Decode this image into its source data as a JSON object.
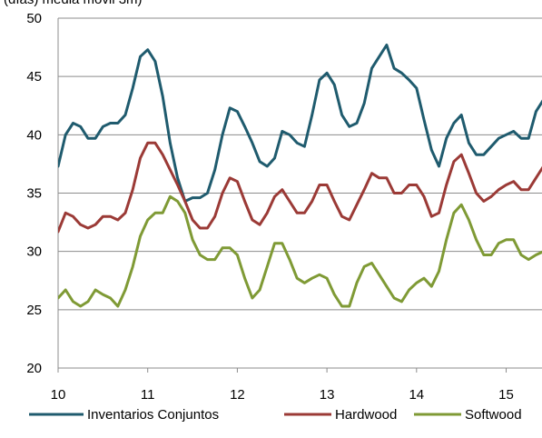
{
  "chart_data": {
    "type": "line",
    "title": "",
    "unit_label": "(días) media móvil 3m)",
    "xlabel": "",
    "ylabel": "",
    "xlim": [
      10,
      15.4
    ],
    "ylim": [
      20,
      50
    ],
    "x_ticks": [
      "10",
      "11",
      "12",
      "13",
      "14",
      "15"
    ],
    "y_ticks": [
      "20",
      "25",
      "30",
      "35",
      "40",
      "45",
      "50"
    ],
    "grid": "horizontal",
    "legend_position": "bottom",
    "x": [
      10.0,
      10.0833,
      10.1667,
      10.25,
      10.3333,
      10.4167,
      10.5,
      10.5833,
      10.6667,
      10.75,
      10.8333,
      10.9167,
      11.0,
      11.0833,
      11.1667,
      11.25,
      11.3333,
      11.4167,
      11.5,
      11.5833,
      11.6667,
      11.75,
      11.8333,
      11.9167,
      12.0,
      12.0833,
      12.1667,
      12.25,
      12.3333,
      12.4167,
      12.5,
      12.5833,
      12.6667,
      12.75,
      12.8333,
      12.9167,
      13.0,
      13.0833,
      13.1667,
      13.25,
      13.3333,
      13.4167,
      13.5,
      13.5833,
      13.6667,
      13.75,
      13.8333,
      13.9167,
      14.0,
      14.0833,
      14.1667,
      14.25,
      14.3333,
      14.4167,
      14.5,
      14.5833,
      14.6667,
      14.75,
      14.8333,
      14.9167,
      15.0,
      15.0833,
      15.1667,
      15.25,
      15.3333,
      15.4167
    ],
    "series": [
      {
        "name": "Inventarios Conjuntos",
        "color": "#1f5b6e",
        "values": [
          37.3,
          40.0,
          41.0,
          40.7,
          39.7,
          39.7,
          40.7,
          41.0,
          41.0,
          41.7,
          44.0,
          46.7,
          47.3,
          46.3,
          43.3,
          39.3,
          36.3,
          34.3,
          34.6,
          34.6,
          35.0,
          37.0,
          40.0,
          42.3,
          42.0,
          40.7,
          39.3,
          37.7,
          37.3,
          38.0,
          40.3,
          40.0,
          39.3,
          39.0,
          41.7,
          44.7,
          45.3,
          44.3,
          41.7,
          40.7,
          41.0,
          42.7,
          45.7,
          46.7,
          47.7,
          45.7,
          45.3,
          44.7,
          44.0,
          41.3,
          38.7,
          37.3,
          39.7,
          41.0,
          41.7,
          39.3,
          38.3,
          38.3,
          39.0,
          39.7,
          40.0,
          40.3,
          39.7,
          39.7,
          42.0,
          43.0
        ]
      },
      {
        "name": "Hardwood",
        "color": "#9b3a36",
        "values": [
          31.7,
          33.3,
          33.0,
          32.3,
          32.0,
          32.3,
          33.0,
          33.0,
          32.7,
          33.3,
          35.3,
          38.0,
          39.3,
          39.3,
          38.3,
          37.0,
          35.7,
          34.3,
          32.7,
          32.0,
          32.0,
          33.0,
          35.0,
          36.3,
          36.0,
          34.3,
          32.7,
          32.3,
          33.3,
          34.7,
          35.3,
          34.3,
          33.3,
          33.3,
          34.3,
          35.7,
          35.7,
          34.3,
          33.0,
          32.7,
          34.0,
          35.3,
          36.7,
          36.3,
          36.3,
          35.0,
          35.0,
          35.7,
          35.7,
          34.7,
          33.0,
          33.3,
          35.7,
          37.7,
          38.3,
          36.7,
          35.0,
          34.3,
          34.7,
          35.3,
          35.7,
          36.0,
          35.3,
          35.3,
          36.3,
          37.3
        ]
      },
      {
        "name": "Softwood",
        "color": "#7f9a35",
        "values": [
          26.0,
          26.7,
          25.7,
          25.3,
          25.7,
          26.7,
          26.3,
          26.0,
          25.3,
          26.7,
          28.7,
          31.3,
          32.7,
          33.3,
          33.3,
          34.7,
          34.3,
          33.3,
          31.0,
          29.7,
          29.3,
          29.3,
          30.3,
          30.3,
          29.7,
          27.7,
          26.0,
          26.7,
          28.7,
          30.7,
          30.7,
          29.3,
          27.7,
          27.3,
          27.7,
          28.0,
          27.7,
          26.3,
          25.3,
          25.3,
          27.3,
          28.7,
          29.0,
          28.0,
          27.0,
          26.0,
          25.7,
          26.7,
          27.3,
          27.7,
          27.0,
          28.3,
          31.0,
          33.3,
          34.0,
          32.7,
          31.0,
          29.7,
          29.7,
          30.7,
          31.0,
          31.0,
          29.7,
          29.3,
          29.7,
          30.0
        ]
      }
    ]
  }
}
